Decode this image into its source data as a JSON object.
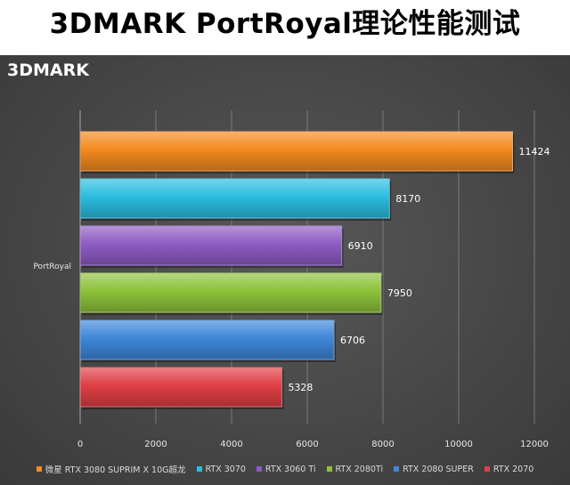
{
  "page": {
    "title": "3DMARK PortRoyal理论性能测试"
  },
  "chart_data": {
    "type": "bar",
    "orientation": "horizontal",
    "title": "3DMARK",
    "categories": [
      "PortRoyal"
    ],
    "xlim": [
      0,
      12000
    ],
    "x_ticks": [
      0,
      2000,
      4000,
      6000,
      8000,
      10000,
      12000
    ],
    "grid": true,
    "legend_position": "bottom",
    "data_labels": true,
    "series": [
      {
        "name": "微星 RTX 3080 SUPRIM X 10G超龙",
        "values": [
          11424
        ],
        "color": "#f38a1f"
      },
      {
        "name": "RTX 3070",
        "values": [
          8170
        ],
        "color": "#2bbde0"
      },
      {
        "name": "RTX 3060 Ti",
        "values": [
          6910
        ],
        "color": "#8e5cc4"
      },
      {
        "name": "RTX 2080Ti",
        "values": [
          7950
        ],
        "color": "#8dc23a"
      },
      {
        "name": "RTX 2080 SUPER",
        "values": [
          6706
        ],
        "color": "#3f87d9"
      },
      {
        "name": "RTX 2070",
        "values": [
          5328
        ],
        "color": "#df3f45"
      }
    ]
  }
}
